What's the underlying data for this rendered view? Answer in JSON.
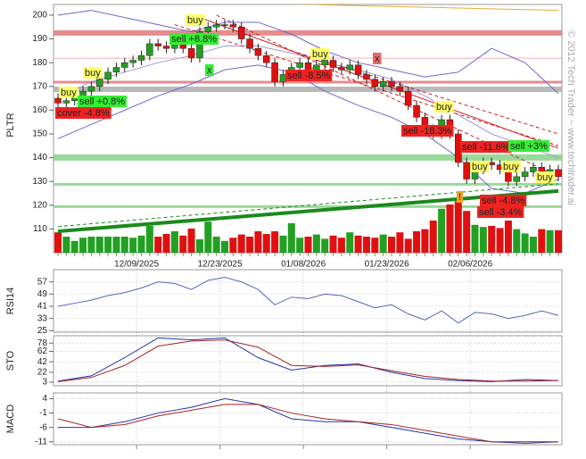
{
  "chart_data": [
    {
      "type": "candlestick",
      "ylabel": "PLTR",
      "categories": [
        null,
        null,
        null,
        null,
        null,
        null,
        null,
        null,
        null,
        "12/09/2025",
        null,
        null,
        null,
        null,
        null,
        null,
        null,
        null,
        null,
        "12/23/2025",
        null,
        null,
        null,
        null,
        null,
        null,
        null,
        null,
        null,
        "01/08/2026",
        null,
        null,
        null,
        null,
        null,
        null,
        null,
        null,
        null,
        "01/23/2026",
        null,
        null,
        null,
        null,
        null,
        null,
        null,
        null,
        null,
        "02/06/2026",
        null,
        null,
        null,
        null,
        null,
        null,
        null,
        null,
        null,
        null,
        null
      ],
      "open": [
        165,
        163,
        164,
        166,
        168,
        170,
        173,
        176,
        178,
        180,
        181,
        183,
        188,
        187,
        186,
        190,
        186,
        182,
        193,
        195,
        196,
        196,
        195,
        190,
        186,
        183,
        180,
        172,
        175,
        178,
        180,
        176,
        179,
        181,
        178,
        177,
        179,
        175,
        173,
        170,
        172,
        170,
        168,
        162,
        157,
        152,
        150,
        156,
        150,
        138,
        131,
        135,
        138,
        137,
        135,
        130,
        132,
        134,
        136,
        133,
        135
      ],
      "high": [
        167,
        166,
        168,
        170,
        172,
        175,
        178,
        180,
        182,
        183,
        185,
        190,
        190,
        189,
        192,
        192,
        188,
        195,
        197,
        198,
        198,
        198,
        197,
        192,
        188,
        185,
        182,
        177,
        180,
        182,
        182,
        181,
        183,
        183,
        180,
        181,
        181,
        177,
        175,
        174,
        174,
        172,
        170,
        164,
        159,
        154,
        158,
        158,
        152,
        140,
        137,
        140,
        140,
        139,
        137,
        134,
        136,
        138,
        138,
        137,
        137
      ],
      "low": [
        161,
        161,
        162,
        164,
        166,
        168,
        171,
        174,
        176,
        178,
        179,
        181,
        185,
        184,
        184,
        184,
        180,
        180,
        191,
        193,
        194,
        193,
        188,
        184,
        181,
        178,
        170,
        170,
        173,
        176,
        174,
        174,
        177,
        176,
        175,
        175,
        173,
        171,
        168,
        168,
        168,
        166,
        160,
        155,
        150,
        148,
        148,
        148,
        136,
        129,
        129,
        133,
        135,
        133,
        128,
        128,
        130,
        132,
        131,
        131,
        130
      ],
      "close": [
        163,
        164,
        166,
        168,
        170,
        173,
        176,
        178,
        180,
        181,
        183,
        188,
        187,
        186,
        190,
        186,
        182,
        193,
        195,
        196,
        196,
        195,
        190,
        186,
        183,
        180,
        172,
        175,
        178,
        180,
        176,
        179,
        181,
        178,
        177,
        179,
        175,
        173,
        170,
        172,
        170,
        168,
        162,
        157,
        152,
        150,
        156,
        150,
        138,
        131,
        135,
        138,
        137,
        135,
        130,
        132,
        134,
        136,
        133,
        135,
        132
      ],
      "volume": [
        38,
        30,
        22,
        28,
        30,
        30,
        30,
        30,
        30,
        28,
        32,
        50,
        30,
        35,
        40,
        32,
        45,
        25,
        58,
        30,
        22,
        28,
        34,
        30,
        40,
        35,
        40,
        32,
        55,
        28,
        30,
        34,
        26,
        32,
        28,
        38,
        32,
        30,
        28,
        34,
        30,
        38,
        26,
        40,
        44,
        60,
        82,
        90,
        96,
        78,
        52,
        48,
        50,
        46,
        60,
        44,
        36,
        30,
        44,
        42,
        42
      ],
      "up_color": "#22a022",
      "down_color": "#e01010",
      "ylim": [
        100,
        204.5
      ],
      "yticks": [
        110,
        120,
        130,
        140,
        150,
        160,
        170,
        180,
        190,
        200
      ],
      "hlines": [
        {
          "value": 192.5,
          "color": "#e07070",
          "width": 6
        },
        {
          "value": 181.9,
          "color": "#f0a0a0",
          "width": 1
        },
        {
          "value": 171.8,
          "color": "#e07070",
          "width": 3
        },
        {
          "value": 168.8,
          "color": "#a8a8a8",
          "width": 6
        },
        {
          "value": 140.1,
          "color": "#80d080",
          "width": 7
        },
        {
          "value": 128.8,
          "color": "#80d080",
          "width": 3
        },
        {
          "value": 119.4,
          "color": "#80d080",
          "width": 3
        }
      ],
      "overlays": [
        {
          "x": [
            0,
            4,
            8,
            12,
            16,
            20,
            24,
            28,
            32,
            36,
            40,
            44,
            48,
            52,
            56,
            60
          ],
          "values": [
            200,
            202,
            199,
            196,
            193,
            197,
            197,
            192,
            185,
            180,
            177,
            174,
            176,
            186,
            180,
            167
          ],
          "color": "#6a6ad0"
        },
        {
          "x": [
            0,
            4,
            8,
            12,
            16,
            20,
            24,
            28,
            32,
            36,
            40,
            44,
            48,
            52,
            56,
            60
          ],
          "values": [
            165,
            172,
            176,
            180,
            183,
            187,
            187,
            184,
            180,
            177,
            173,
            166,
            158,
            150,
            145,
            140
          ],
          "color": "#9a9ae0"
        },
        {
          "x": [
            0,
            4,
            8,
            12,
            16,
            20,
            24,
            28,
            32,
            36,
            40,
            44,
            48,
            52,
            56,
            60
          ],
          "values": [
            148,
            154,
            160,
            166,
            171,
            177,
            179,
            176,
            168,
            162,
            157,
            150,
            140,
            127,
            125,
            131
          ],
          "color": "#6a6ad0"
        }
      ],
      "trendlines": [
        {
          "x": [
            0,
            60
          ],
          "values": [
            109,
            126
          ],
          "color": "#1a8a1a",
          "width": 4,
          "dash": false
        },
        {
          "x": [
            0,
            60
          ],
          "values": [
            111,
            129
          ],
          "color": "#1a8a1a",
          "width": 1,
          "dash": true
        },
        {
          "x": [
            19,
            60
          ],
          "values": [
            200,
            132
          ],
          "color": "#d02020",
          "width": 1,
          "dash": true
        },
        {
          "x": [
            14,
            60
          ],
          "values": [
            196,
            145
          ],
          "color": "#d02020",
          "width": 1,
          "dash": true
        },
        {
          "x": [
            28,
            60
          ],
          "values": [
            185,
            150
          ],
          "color": "#d02020",
          "width": 1,
          "dash": true
        },
        {
          "x": [
            17,
            60
          ],
          "values": [
            199,
            144
          ],
          "color": "#d02020",
          "width": 1,
          "dash": false
        },
        {
          "x": [
            12,
            60
          ],
          "values": [
            206,
            202
          ],
          "color": "#e0b030",
          "width": 1,
          "dash": false
        }
      ],
      "annotations": [
        {
          "text": "buy",
          "color": "#ffff66"
        },
        {
          "text": "sell +0.8%",
          "color": "#33ee33"
        },
        {
          "text": "cover -4.8%",
          "color": "#ee2222"
        },
        {
          "text": "buy",
          "color": "#ffff66"
        },
        {
          "text": "buy",
          "color": "#ffff66"
        },
        {
          "text": "sell +8.8%",
          "color": "#33ee33"
        },
        {
          "text": "x",
          "color": "#33ee33"
        },
        {
          "text": "buy",
          "color": "#ffff66"
        },
        {
          "text": "sell -8.5%",
          "color": "#ee2222"
        },
        {
          "text": "x",
          "color": "#ee6666"
        },
        {
          "text": "buy",
          "color": "#ffff66"
        },
        {
          "text": "sell -18.3%",
          "color": "#ee2222"
        },
        {
          "text": "sell -11.6%",
          "color": "#ee2222"
        },
        {
          "text": "sell +3%",
          "color": "#33ee33"
        },
        {
          "text": "buy",
          "color": "#ffff66"
        },
        {
          "text": "buy",
          "color": "#ffff66"
        },
        {
          "text": "buy",
          "color": "#ffff66"
        },
        {
          "text": "!",
          "color": "#f0a020"
        },
        {
          "text": "sell -4.8%",
          "color": "#ee2222"
        },
        {
          "text": "sell -3.4%",
          "color": "#ee2222"
        }
      ],
      "copyright": "© 2012 Tech Trader ~ www.techtrader.ai"
    },
    {
      "type": "line",
      "ylabel": "RSI14",
      "x": [
        0,
        2,
        4,
        6,
        8,
        10,
        12,
        14,
        16,
        18,
        20,
        22,
        24,
        26,
        28,
        30,
        32,
        34,
        36,
        38,
        40,
        42,
        44,
        46,
        48,
        50,
        52,
        54,
        56,
        58,
        60
      ],
      "series": [
        {
          "color": "#5566bb",
          "values": [
            41,
            43,
            45,
            48,
            50,
            53,
            57,
            56,
            52,
            58,
            60,
            57,
            52,
            42,
            47,
            46,
            49,
            48,
            44,
            40,
            42,
            36,
            32,
            38,
            30,
            37,
            36,
            33,
            35,
            38,
            35
          ]
        }
      ],
      "ylim": [
        24,
        65
      ],
      "yticks": [
        25,
        33,
        41,
        49,
        57
      ],
      "grid": true
    },
    {
      "type": "line",
      "ylabel": "STO",
      "x": [
        0,
        4,
        8,
        12,
        16,
        20,
        24,
        28,
        32,
        36,
        40,
        44,
        48,
        52,
        56,
        60
      ],
      "series": [
        {
          "color": "#2233aa",
          "values": [
            5,
            15,
            50,
            88,
            84,
            88,
            50,
            26,
            35,
            38,
            22,
            10,
            6,
            4,
            8,
            6
          ]
        },
        {
          "color": "#aa2222",
          "values": [
            4,
            12,
            35,
            72,
            82,
            84,
            70,
            35,
            33,
            36,
            25,
            14,
            8,
            5,
            5,
            6
          ]
        }
      ],
      "ylim": [
        -4,
        92
      ],
      "yticks": [
        3,
        22,
        42,
        62,
        78
      ],
      "grid": true
    },
    {
      "type": "line",
      "ylabel": "MACD",
      "x": [
        0,
        4,
        8,
        12,
        16,
        20,
        24,
        28,
        32,
        36,
        40,
        44,
        48,
        52,
        56,
        60
      ],
      "series": [
        {
          "color": "#2233aa",
          "values": [
            -6,
            -6,
            -4,
            -1,
            1,
            4,
            2,
            -3,
            -4,
            -4,
            -6,
            -8,
            -10,
            -11,
            -11.5,
            -11
          ]
        },
        {
          "color": "#aa2222",
          "values": [
            -3,
            -6,
            -5,
            -2,
            0,
            2,
            2,
            -1,
            -3,
            -4,
            -5,
            -7,
            -9,
            -11,
            -11,
            -11
          ]
        }
      ],
      "ylim": [
        -12,
        6
      ],
      "yticks": [
        -11,
        -6,
        -1,
        4
      ],
      "grid": true
    }
  ]
}
